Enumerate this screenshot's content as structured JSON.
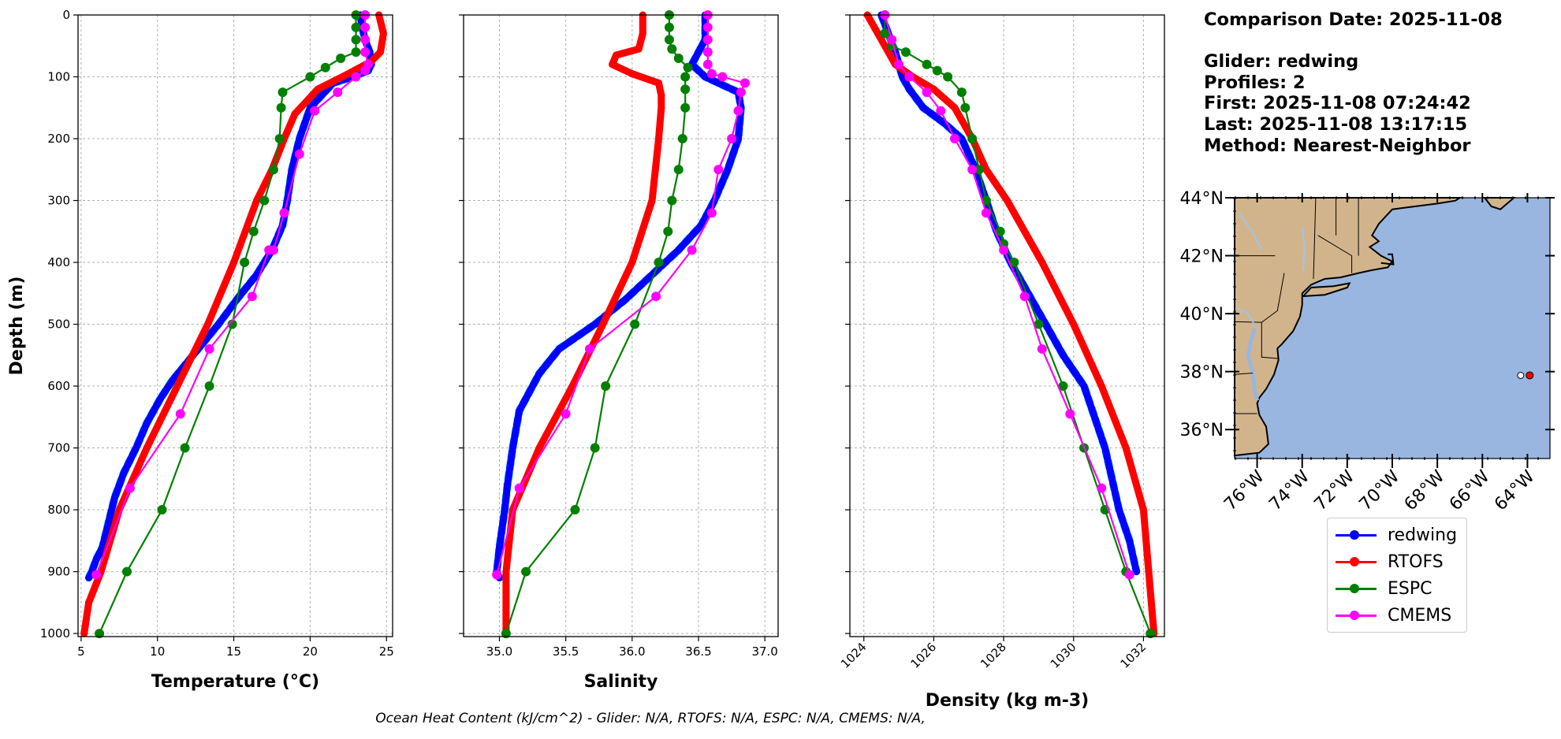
{
  "chart_data": [
    {
      "type": "line",
      "xlabel": "Temperature (°C)",
      "ylabel": "Depth (m)",
      "xlim": [
        4.8,
        25.4
      ],
      "ylim": [
        1005,
        0
      ],
      "xticks": [
        5,
        10,
        15,
        20,
        25
      ],
      "yticks": [
        0,
        100,
        200,
        300,
        400,
        500,
        600,
        700,
        800,
        900,
        1000
      ],
      "grid": true,
      "series": [
        {
          "name": "redwing",
          "color": "#0000ff",
          "style": "glider",
          "x": [
            23.3,
            23.4,
            23.6,
            23.9,
            24.0,
            23.8,
            22.8,
            21.5,
            20.0,
            19.3,
            18.8,
            18.5,
            18.2,
            17.5,
            16.5,
            15.2,
            14.0,
            13.0,
            12.0,
            11.0,
            10.2,
            9.3,
            8.6,
            7.8,
            7.2,
            6.8,
            6.4,
            6.0,
            5.7,
            5.5
          ],
          "y": [
            0,
            20,
            40,
            60,
            80,
            90,
            100,
            110,
            150,
            200,
            250,
            300,
            340,
            380,
            420,
            460,
            500,
            530,
            560,
            590,
            620,
            660,
            700,
            740,
            780,
            820,
            860,
            880,
            900,
            910
          ]
        },
        {
          "name": "RTOFS",
          "color": "#ff0000",
          "style": "model",
          "x": [
            24.5,
            24.8,
            24.6,
            24.0,
            22.5,
            20.5,
            19.0,
            18.3,
            17.5,
            16.5,
            15.0,
            13.3,
            11.3,
            9.3,
            7.5,
            6.3,
            5.5,
            5.2
          ],
          "y": [
            0,
            30,
            60,
            75,
            95,
            120,
            160,
            200,
            250,
            300,
            400,
            500,
            600,
            700,
            800,
            900,
            950,
            1000
          ]
        },
        {
          "name": "ESPC",
          "color": "#008000",
          "style": "model-dots",
          "x": [
            23.0,
            23.0,
            23.0,
            23.0,
            22.0,
            21.0,
            20.0,
            18.2,
            18.1,
            18.0,
            17.6,
            17.0,
            16.3,
            15.7,
            14.9,
            13.4,
            11.8,
            10.3,
            8.0,
            6.2
          ],
          "y": [
            0,
            20,
            40,
            60,
            70,
            85,
            100,
            125,
            150,
            200,
            250,
            300,
            350,
            400,
            500,
            600,
            700,
            800,
            900,
            1000
          ]
        },
        {
          "name": "CMEMS",
          "color": "#ff00ff",
          "style": "model-dots",
          "x": [
            23.6,
            23.6,
            23.6,
            23.6,
            23.8,
            23.6,
            23.0,
            21.8,
            20.3,
            19.3,
            18.3,
            17.6,
            17.3,
            16.2,
            13.4,
            11.5,
            8.2,
            6.0
          ],
          "y": [
            0,
            20,
            40,
            60,
            80,
            90,
            100,
            125,
            155,
            225,
            320,
            380,
            380,
            455,
            540,
            645,
            765,
            905
          ]
        }
      ]
    },
    {
      "type": "line",
      "xlabel": "Salinity",
      "ylabel": "",
      "xlim": [
        34.73,
        37.1
      ],
      "ylim": [
        1005,
        0
      ],
      "xticks": [
        35.0,
        35.5,
        36.0,
        36.5,
        37.0
      ],
      "grid": true,
      "series": [
        {
          "name": "redwing",
          "color": "#0000ff",
          "style": "glider",
          "x": [
            36.55,
            36.55,
            36.55,
            36.5,
            36.45,
            36.55,
            36.65,
            36.8,
            36.82,
            36.8,
            36.72,
            36.62,
            36.52,
            36.35,
            36.15,
            35.95,
            35.72,
            35.45,
            35.3,
            35.15,
            35.1,
            35.06,
            35.04,
            35.0,
            34.98,
            35.0
          ],
          "y": [
            0,
            20,
            40,
            60,
            80,
            100,
            110,
            125,
            150,
            200,
            250,
            300,
            340,
            380,
            420,
            460,
            500,
            540,
            580,
            640,
            700,
            760,
            800,
            860,
            900,
            910
          ]
        },
        {
          "name": "RTOFS",
          "color": "#ff0000",
          "style": "model",
          "x": [
            36.08,
            36.08,
            36.05,
            35.88,
            35.85,
            36.0,
            36.2,
            36.22,
            36.22,
            36.2,
            36.15,
            36.0,
            35.78,
            35.55,
            35.3,
            35.1,
            35.05,
            35.05
          ],
          "y": [
            0,
            30,
            55,
            65,
            80,
            95,
            110,
            130,
            150,
            200,
            300,
            400,
            500,
            600,
            700,
            800,
            900,
            1000
          ]
        },
        {
          "name": "ESPC",
          "color": "#008000",
          "style": "model-dots",
          "x": [
            36.28,
            36.28,
            36.28,
            36.3,
            36.35,
            36.42,
            36.4,
            36.4,
            36.4,
            36.38,
            36.35,
            36.3,
            36.27,
            36.2,
            36.02,
            35.8,
            35.72,
            35.57,
            35.2,
            35.05
          ],
          "y": [
            0,
            20,
            40,
            55,
            70,
            85,
            100,
            120,
            150,
            200,
            250,
            300,
            350,
            400,
            500,
            600,
            700,
            800,
            900,
            1000
          ]
        },
        {
          "name": "CMEMS",
          "color": "#ff00ff",
          "style": "model-dots",
          "x": [
            36.57,
            36.57,
            36.57,
            36.57,
            36.57,
            36.6,
            36.68,
            36.85,
            36.82,
            36.8,
            36.75,
            36.65,
            36.6,
            36.45,
            36.18,
            35.68,
            35.5,
            35.15,
            34.98
          ],
          "y": [
            0,
            20,
            40,
            60,
            80,
            95,
            100,
            110,
            125,
            155,
            200,
            250,
            320,
            380,
            455,
            540,
            645,
            765,
            905
          ]
        }
      ]
    },
    {
      "type": "line",
      "xlabel": "Density (kg m-3)",
      "ylabel": "",
      "xlim": [
        1023.6,
        1032.6
      ],
      "ylim": [
        1005,
        0
      ],
      "xticks": [
        1024,
        1026,
        1028,
        1030,
        1032
      ],
      "grid": true,
      "series": [
        {
          "name": "redwing",
          "color": "#0000ff",
          "style": "glider",
          "x": [
            1024.5,
            1024.7,
            1024.9,
            1025.0,
            1025.1,
            1025.3,
            1025.7,
            1026.3,
            1026.8,
            1027.2,
            1027.5,
            1027.8,
            1028.2,
            1028.7,
            1029.2,
            1029.7,
            1030.3,
            1030.9,
            1031.3,
            1031.6,
            1031.8
          ],
          "y": [
            0,
            30,
            60,
            80,
            100,
            120,
            150,
            175,
            200,
            250,
            300,
            350,
            400,
            450,
            500,
            550,
            600,
            700,
            800,
            850,
            900
          ]
        },
        {
          "name": "RTOFS",
          "color": "#ff0000",
          "style": "model",
          "x": [
            1024.1,
            1024.4,
            1024.7,
            1024.9,
            1025.4,
            1026.0,
            1026.6,
            1027.1,
            1027.5,
            1028.1,
            1029.1,
            1030.0,
            1030.8,
            1031.5,
            1032.0,
            1032.3
          ],
          "y": [
            0,
            30,
            60,
            80,
            100,
            120,
            150,
            200,
            250,
            300,
            400,
            500,
            600,
            700,
            800,
            1000
          ]
        },
        {
          "name": "ESPC",
          "color": "#008000",
          "style": "model-dots",
          "x": [
            1024.6,
            1024.6,
            1024.8,
            1025.2,
            1025.8,
            1026.1,
            1026.4,
            1026.8,
            1026.9,
            1027.1,
            1027.3,
            1027.5,
            1027.9,
            1028.0,
            1028.3,
            1029.0,
            1029.7,
            1030.3,
            1030.9,
            1031.5,
            1032.2
          ],
          "y": [
            0,
            30,
            50,
            60,
            80,
            90,
            100,
            125,
            150,
            200,
            250,
            300,
            350,
            370,
            400,
            500,
            600,
            700,
            800,
            900,
            1000
          ]
        },
        {
          "name": "CMEMS",
          "color": "#ff00ff",
          "style": "model-dots",
          "x": [
            1024.6,
            1024.8,
            1025.0,
            1025.3,
            1025.8,
            1026.2,
            1026.6,
            1027.1,
            1027.5,
            1028.0,
            1028.6,
            1029.1,
            1029.9,
            1030.8,
            1031.6
          ],
          "y": [
            0,
            40,
            80,
            100,
            125,
            155,
            200,
            250,
            320,
            380,
            455,
            540,
            645,
            765,
            905
          ]
        }
      ]
    }
  ],
  "info": {
    "lines": [
      "Comparison Date: 2025-11-08",
      "",
      "Glider: redwing",
      "Profiles: 2",
      "First: 2025-11-08 07:24:42",
      "Last: 2025-11-08 13:17:15",
      "Method: Nearest-Neighbor"
    ]
  },
  "map": {
    "lon_range": [
      -77.0,
      -63.0
    ],
    "lat_range": [
      35.0,
      44.0
    ],
    "xtick_labels": [
      "76°W",
      "74°W",
      "72°W",
      "70°W",
      "68°W",
      "66°W",
      "64°W"
    ],
    "xtick_values": [
      -76,
      -74,
      -72,
      -70,
      -68,
      -66,
      -64
    ],
    "ytick_labels": [
      "44°N",
      "42°N",
      "40°N",
      "38°N",
      "36°N"
    ],
    "ytick_values": [
      44,
      42,
      40,
      38,
      36
    ],
    "land_color": "#d2b48c",
    "ocean_color": "#98b6e0",
    "glider_position": {
      "lon": -63.9,
      "lat": 37.87
    },
    "model_position": {
      "lon": -64.3,
      "lat": 37.87
    }
  },
  "legend": [
    {
      "label": "redwing",
      "color": "#0000ff",
      "data_name": "legend-item-redwing"
    },
    {
      "label": "RTOFS",
      "color": "#ff0000",
      "data_name": "legend-item-rtofs"
    },
    {
      "label": "ESPC",
      "color": "#008000",
      "data_name": "legend-item-espc"
    },
    {
      "label": "CMEMS",
      "color": "#ff00ff",
      "data_name": "legend-item-cmems"
    }
  ],
  "footer": "Ocean Heat Content (kJ/cm^2) - Glider: N/A,  RTOFS: N/A,  ESPC: N/A,  CMEMS: N/A,"
}
